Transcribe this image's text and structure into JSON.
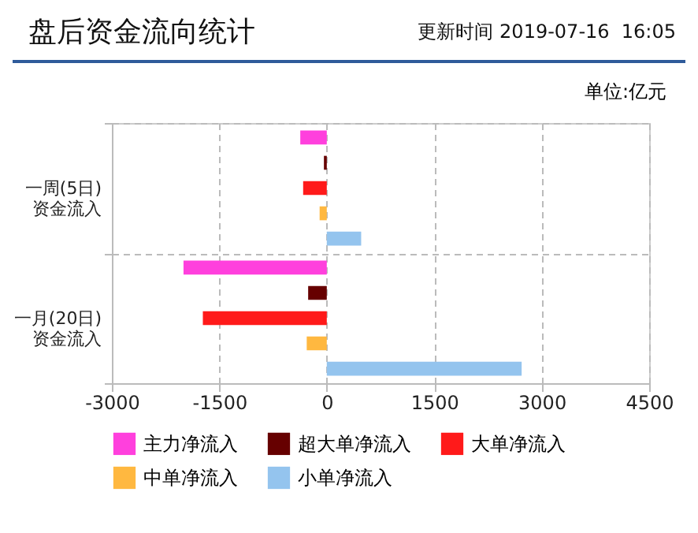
{
  "chart_data": {
    "type": "bar",
    "orientation": "horizontal",
    "title": "盘后资金流向统计",
    "subtitle": "更新时间 2019-07-16  16:05",
    "annotations": [
      "单位:亿元"
    ],
    "categories": [
      "一周(5日)\n资金流入",
      "一月(20日)\n资金流入"
    ],
    "series": [
      {
        "name": "主力净流入",
        "color": "#ff40dd",
        "values": [
          -370,
          -2000
        ]
      },
      {
        "name": "超大单净流入",
        "color": "#660000",
        "values": [
          -40,
          -260
        ]
      },
      {
        "name": "大单净流入",
        "color": "#ff1a1a",
        "values": [
          -330,
          -1730
        ]
      },
      {
        "name": "中单净流入",
        "color": "#ffb840",
        "values": [
          -100,
          -280
        ]
      },
      {
        "name": "小单净流入",
        "color": "#94c4ee",
        "values": [
          480,
          2720
        ]
      }
    ],
    "xlim": [
      -3000,
      4500
    ],
    "xticks": [
      -3000,
      -1500,
      0,
      1500,
      3000,
      4500
    ],
    "grid": true,
    "legend": "bottom"
  }
}
